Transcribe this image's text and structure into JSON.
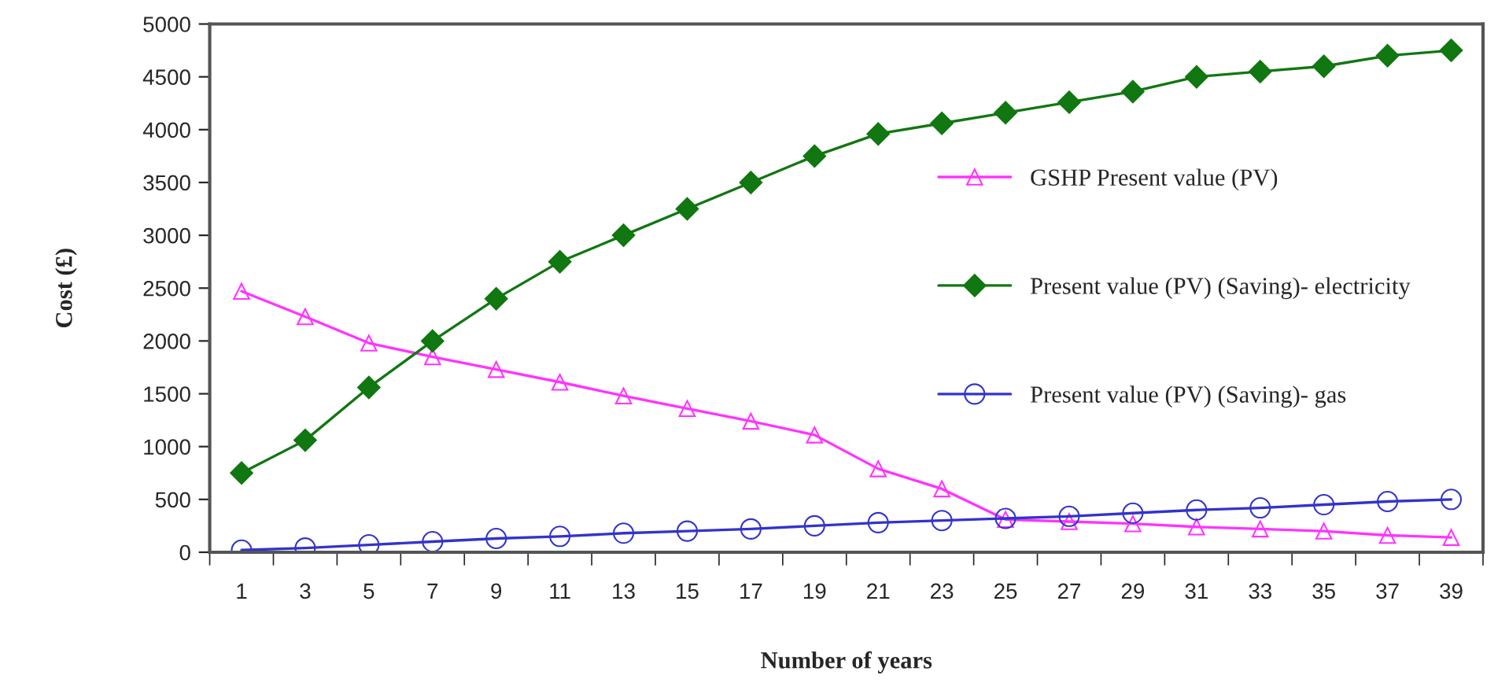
{
  "chart_data": {
    "type": "line",
    "xlabel": "Number of years",
    "ylabel": "Cost (£)",
    "categories": [
      "1",
      "3",
      "5",
      "7",
      "9",
      "11",
      "13",
      "15",
      "17",
      "19",
      "21",
      "23",
      "25",
      "27",
      "29",
      "31",
      "33",
      "35",
      "37",
      "39"
    ],
    "series": [
      {
        "name": "GSHP Present value (PV)",
        "color": "#ff33ff",
        "marker": "triangle",
        "values": [
          2470,
          2230,
          1980,
          1850,
          1730,
          1610,
          1480,
          1360,
          1240,
          1110,
          790,
          600,
          310,
          290,
          270,
          240,
          220,
          200,
          160,
          140
        ]
      },
      {
        "name": "Present value (PV) (Saving)- electricity",
        "color": "#117711",
        "marker": "diamond",
        "values": [
          750,
          1060,
          1560,
          2000,
          2400,
          2750,
          3000,
          3250,
          3500,
          3750,
          3960,
          4060,
          4160,
          4260,
          4360,
          4500,
          4550,
          4600,
          4700,
          4750
        ]
      },
      {
        "name": "Present value (PV) (Saving)- gas",
        "color": "#3333cc",
        "marker": "circle",
        "values": [
          20,
          40,
          70,
          100,
          130,
          150,
          180,
          200,
          220,
          250,
          280,
          300,
          320,
          340,
          370,
          400,
          420,
          450,
          480,
          500
        ]
      }
    ],
    "ylim": [
      0,
      5000
    ],
    "yticks": [
      0,
      500,
      1000,
      1500,
      2000,
      2500,
      3000,
      3500,
      4000,
      4500,
      5000
    ],
    "grid": false,
    "legend": "right"
  }
}
